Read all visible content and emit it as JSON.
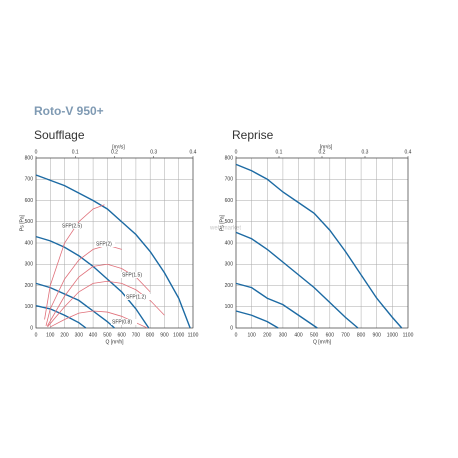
{
  "header": {
    "title": "Roto-V 950+"
  },
  "watermark": "web market",
  "chart_data": [
    {
      "type": "line",
      "title": "Soufflage",
      "xlabel": "Q [m³/h]",
      "ylabel": "Ps [Pa]",
      "x2label": "[m³/s]",
      "xlim": [
        0,
        1100
      ],
      "xticks": [
        0,
        100,
        200,
        300,
        400,
        500,
        600,
        700,
        800,
        900,
        1000,
        1100
      ],
      "x2lim": [
        0,
        0.4
      ],
      "x2ticks": [
        0,
        0.1,
        0.2,
        0.3,
        0.4
      ],
      "ylim": [
        0,
        800
      ],
      "yticks": [
        0,
        100,
        200,
        300,
        400,
        500,
        600,
        700,
        800
      ],
      "grid": true,
      "series": [
        {
          "color": "#1c6aa3",
          "x": [
            0,
            200,
            400,
            500,
            600,
            700,
            800,
            900,
            1000,
            1080
          ],
          "values": [
            720,
            670,
            600,
            560,
            500,
            440,
            360,
            260,
            140,
            0
          ]
        },
        {
          "color": "#1c6aa3",
          "x": [
            0,
            100,
            200,
            300,
            400,
            500,
            600,
            700,
            790
          ],
          "values": [
            430,
            410,
            380,
            340,
            290,
            230,
            170,
            90,
            0
          ]
        },
        {
          "color": "#1c6aa3",
          "x": [
            0,
            100,
            200,
            300,
            400,
            500,
            550
          ],
          "values": [
            210,
            190,
            160,
            130,
            80,
            30,
            0
          ]
        },
        {
          "color": "#1c6aa3",
          "x": [
            0,
            100,
            200,
            300,
            350
          ],
          "values": [
            105,
            90,
            60,
            25,
            0
          ]
        },
        {
          "name": "SFP(2.5)",
          "color": "#e0707a",
          "x": [
            60,
            100,
            200,
            300,
            400,
            480
          ],
          "values": [
            40,
            200,
            400,
            500,
            560,
            580
          ]
        },
        {
          "name": "SFP(2)",
          "color": "#e0707a",
          "x": [
            70,
            100,
            200,
            300,
            400,
            500,
            600
          ],
          "values": [
            10,
            90,
            230,
            320,
            370,
            390,
            370
          ]
        },
        {
          "name": "SFP(1.5)",
          "color": "#e0707a",
          "x": [
            80,
            200,
            300,
            400,
            500,
            600,
            700,
            800
          ],
          "values": [
            10,
            150,
            240,
            290,
            300,
            280,
            240,
            170
          ]
        },
        {
          "name": "SFP(1.2)",
          "color": "#e0707a",
          "x": [
            80,
            200,
            300,
            400,
            500,
            600,
            700,
            800,
            900
          ],
          "values": [
            5,
            100,
            170,
            210,
            220,
            210,
            180,
            130,
            60
          ]
        },
        {
          "name": "SFP(0.8)",
          "color": "#e0707a",
          "x": [
            100,
            200,
            300,
            400,
            500,
            600,
            700,
            780
          ],
          "values": [
            5,
            40,
            70,
            80,
            75,
            55,
            25,
            0
          ]
        }
      ]
    },
    {
      "type": "line",
      "title": "Reprise",
      "xlabel": "Q [m³/h]",
      "ylabel": "Ps [Pa]",
      "x2label": "[m³/s]",
      "xlim": [
        0,
        1100
      ],
      "xticks": [
        0,
        100,
        200,
        300,
        400,
        500,
        600,
        700,
        800,
        900,
        1000,
        1100
      ],
      "x2lim": [
        0,
        0.4
      ],
      "x2ticks": [
        0,
        0.1,
        0.2,
        0.3,
        0.4
      ],
      "ylim": [
        0,
        800
      ],
      "yticks": [
        0,
        100,
        200,
        300,
        400,
        500,
        600,
        700,
        800
      ],
      "grid": true,
      "series": [
        {
          "color": "#1c6aa3",
          "x": [
            0,
            100,
            200,
            300,
            400,
            500,
            600,
            700,
            800,
            900,
            1000,
            1060
          ],
          "values": [
            770,
            740,
            700,
            640,
            590,
            540,
            460,
            360,
            250,
            140,
            50,
            0
          ]
        },
        {
          "color": "#1c6aa3",
          "x": [
            0,
            100,
            200,
            300,
            400,
            500,
            600,
            700,
            780
          ],
          "values": [
            450,
            420,
            370,
            310,
            250,
            190,
            120,
            50,
            0
          ]
        },
        {
          "color": "#1c6aa3",
          "x": [
            0,
            100,
            200,
            300,
            400,
            500,
            520
          ],
          "values": [
            210,
            190,
            140,
            110,
            60,
            10,
            0
          ]
        },
        {
          "color": "#1c6aa3",
          "x": [
            0,
            100,
            200,
            270
          ],
          "values": [
            80,
            60,
            30,
            0
          ]
        }
      ]
    }
  ]
}
